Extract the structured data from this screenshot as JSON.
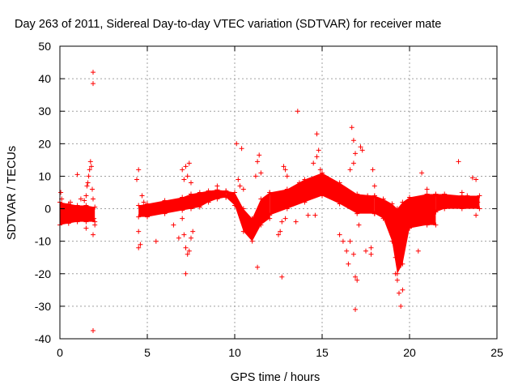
{
  "chart_data": {
    "type": "scatter",
    "title": "Day 263 of 2011, Sidereal Day-to-day VTEC variation (SDTVAR) for receiver mate",
    "xlabel": "GPS time / hours",
    "ylabel": "SDTVAR / TECUs",
    "xlim": [
      0,
      25
    ],
    "ylim": [
      -40,
      50
    ],
    "x_ticks": [
      0,
      5,
      10,
      15,
      20,
      25
    ],
    "y_ticks": [
      -40,
      -30,
      -20,
      -10,
      0,
      10,
      20,
      30,
      40,
      50
    ],
    "grid": true,
    "marker": "+",
    "color": "#ff0000",
    "dense_bands": [
      {
        "name": "band-00-02h",
        "x": [
          0.0,
          0.5,
          1.0,
          1.5,
          2.0
        ],
        "upper": [
          2.0,
          1.5,
          1.0,
          1.0,
          0.5
        ],
        "lower": [
          -5.0,
          -4.5,
          -4.0,
          -4.0,
          -4.0
        ]
      },
      {
        "name": "band-04-09h",
        "x": [
          4.5,
          5.0,
          6.0,
          7.0,
          7.5,
          8.0,
          8.5,
          9.0,
          9.5
        ],
        "upper": [
          1.0,
          1.5,
          2.5,
          3.5,
          4.5,
          5.0,
          5.5,
          5.8,
          5.5
        ],
        "lower": [
          -2.5,
          -2.5,
          -1.5,
          -0.5,
          0.0,
          0.5,
          2.0,
          3.0,
          3.5
        ]
      },
      {
        "name": "band-09-12h",
        "x": [
          9.5,
          10.0,
          10.5,
          11.0,
          11.5,
          12.0
        ],
        "upper": [
          5.5,
          5.0,
          0.0,
          -3.0,
          3.0,
          5.0
        ],
        "lower": [
          3.5,
          1.0,
          -7.0,
          -10.0,
          -5.0,
          -3.0
        ]
      },
      {
        "name": "band-12-18h",
        "x": [
          12.0,
          13.0,
          14.0,
          15.0,
          16.0,
          17.0,
          18.0
        ],
        "upper": [
          5.0,
          6.0,
          9.0,
          11.0,
          8.0,
          4.5,
          4.0
        ],
        "lower": [
          -2.0,
          0.0,
          2.0,
          4.0,
          1.5,
          -1.5,
          -1.5
        ]
      },
      {
        "name": "band-18-22h",
        "x": [
          18.0,
          18.5,
          19.0,
          19.3,
          19.6,
          20.0,
          21.0,
          21.5
        ],
        "upper": [
          4.0,
          3.0,
          1.5,
          0.0,
          2.0,
          3.5,
          4.5,
          4.5
        ],
        "lower": [
          -1.5,
          -3.0,
          -10.0,
          -20.0,
          -17.0,
          -6.0,
          -5.0,
          -5.0
        ]
      },
      {
        "name": "band-22-24h",
        "x": [
          21.5,
          22.0,
          23.0,
          24.0
        ],
        "upper": [
          4.5,
          4.5,
          4.0,
          4.0
        ],
        "lower": [
          -1.0,
          0.0,
          0.0,
          0.0
        ]
      }
    ],
    "points": [
      [
        0.05,
        5
      ],
      [
        0.1,
        3
      ],
      [
        0.3,
        -1
      ],
      [
        0.6,
        2
      ],
      [
        1.0,
        10.5
      ],
      [
        1.2,
        3
      ],
      [
        1.4,
        2.5
      ],
      [
        1.5,
        4
      ],
      [
        1.55,
        7
      ],
      [
        1.6,
        8
      ],
      [
        1.65,
        10
      ],
      [
        1.7,
        12
      ],
      [
        1.75,
        14.5
      ],
      [
        1.8,
        13
      ],
      [
        1.85,
        6
      ],
      [
        1.9,
        3
      ],
      [
        1.95,
        -3
      ],
      [
        2.0,
        -5
      ],
      [
        1.9,
        -8
      ],
      [
        1.5,
        -6
      ],
      [
        1.65,
        -2
      ],
      [
        1.9,
        42
      ],
      [
        1.9,
        38.5
      ],
      [
        1.9,
        -37.5
      ],
      [
        4.4,
        9
      ],
      [
        4.5,
        12
      ],
      [
        4.5,
        -7
      ],
      [
        4.5,
        -12
      ],
      [
        4.6,
        -11
      ],
      [
        4.7,
        4
      ],
      [
        4.8,
        2
      ],
      [
        5.5,
        -10
      ],
      [
        6.5,
        -5
      ],
      [
        6.8,
        -9
      ],
      [
        7.0,
        12
      ],
      [
        7.1,
        9
      ],
      [
        7.2,
        13
      ],
      [
        7.3,
        10
      ],
      [
        7.4,
        14
      ],
      [
        7.5,
        8
      ],
      [
        7.1,
        -8
      ],
      [
        7.2,
        -12
      ],
      [
        7.3,
        -14
      ],
      [
        7.4,
        -13
      ],
      [
        7.5,
        -9
      ],
      [
        7.6,
        -7
      ],
      [
        7.2,
        -20
      ],
      [
        7.0,
        -3
      ],
      [
        9.0,
        7
      ],
      [
        10.1,
        20
      ],
      [
        10.4,
        18.5
      ],
      [
        10.2,
        9
      ],
      [
        10.3,
        7
      ],
      [
        10.5,
        6
      ],
      [
        10.8,
        -6
      ],
      [
        11.0,
        -8
      ],
      [
        11.2,
        10
      ],
      [
        11.3,
        14.5
      ],
      [
        11.4,
        16.5
      ],
      [
        11.5,
        11
      ],
      [
        11.3,
        -18
      ],
      [
        11.6,
        2
      ],
      [
        12.5,
        -8
      ],
      [
        12.6,
        -7
      ],
      [
        12.7,
        -21
      ],
      [
        12.8,
        13
      ],
      [
        12.9,
        12
      ],
      [
        13.0,
        10
      ],
      [
        12.7,
        -4
      ],
      [
        12.9,
        -3
      ],
      [
        13.6,
        30
      ],
      [
        13.5,
        -4
      ],
      [
        13.7,
        8
      ],
      [
        14.2,
        -2
      ],
      [
        14.6,
        -2
      ],
      [
        14.7,
        23
      ],
      [
        14.8,
        18
      ],
      [
        14.7,
        16
      ],
      [
        14.9,
        12
      ],
      [
        15.0,
        10.5
      ],
      [
        14.5,
        14
      ],
      [
        16.0,
        -8
      ],
      [
        16.2,
        -10
      ],
      [
        16.4,
        -13
      ],
      [
        16.5,
        -17
      ],
      [
        16.6,
        12
      ],
      [
        16.7,
        25
      ],
      [
        16.8,
        21
      ],
      [
        16.9,
        17
      ],
      [
        16.8,
        14
      ],
      [
        16.6,
        -10
      ],
      [
        16.8,
        -14
      ],
      [
        16.9,
        -21
      ],
      [
        17.0,
        -22
      ],
      [
        16.9,
        -31
      ],
      [
        17.2,
        19
      ],
      [
        17.3,
        18
      ],
      [
        17.1,
        -5
      ],
      [
        17.5,
        -13
      ],
      [
        17.8,
        -14
      ],
      [
        17.9,
        12
      ],
      [
        18.0,
        7
      ],
      [
        17.6,
        4
      ],
      [
        17.8,
        -12
      ],
      [
        19.0,
        -8
      ],
      [
        19.2,
        -20
      ],
      [
        19.3,
        -22
      ],
      [
        19.4,
        -26
      ],
      [
        19.5,
        -30
      ],
      [
        19.6,
        -25
      ],
      [
        19.2,
        -15
      ],
      [
        19.4,
        -18
      ],
      [
        20.5,
        -13
      ],
      [
        20.7,
        11
      ],
      [
        21.0,
        6
      ],
      [
        22.8,
        14.5
      ],
      [
        23.0,
        5
      ],
      [
        23.3,
        4
      ],
      [
        23.5,
        3
      ],
      [
        23.6,
        9.5
      ],
      [
        23.8,
        9
      ],
      [
        23.9,
        2
      ],
      [
        23.8,
        -2
      ]
    ]
  }
}
